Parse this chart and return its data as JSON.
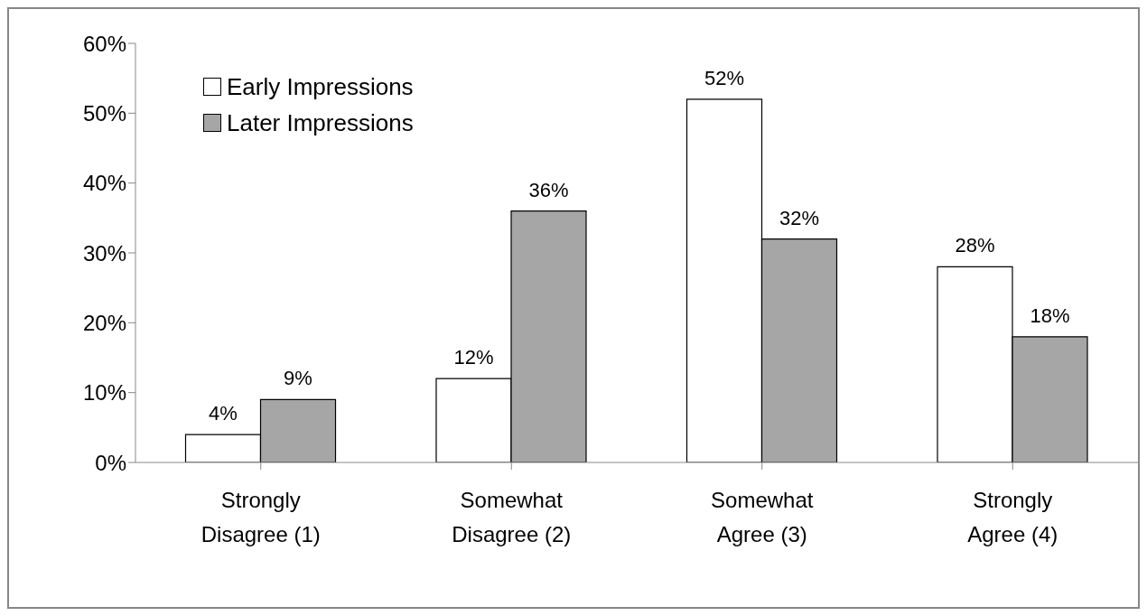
{
  "chart_data": {
    "type": "bar",
    "categories": [
      "Strongly Disagree (1)",
      "Somewhat Disagree (2)",
      "Somewhat Agree (3)",
      "Strongly Agree (4)"
    ],
    "series": [
      {
        "name": "Early Impressions",
        "color": "#ffffff",
        "values": [
          4,
          12,
          52,
          28
        ],
        "value_labels": [
          "4%",
          "12%",
          "52%",
          "28%"
        ]
      },
      {
        "name": "Later Impressions",
        "color": "#a6a6a6",
        "values": [
          9,
          36,
          32,
          18
        ],
        "value_labels": [
          "9%",
          "36%",
          "32%",
          "18%"
        ]
      }
    ],
    "ylim": [
      0,
      60
    ],
    "yticks": [
      {
        "value": 0,
        "label": "0%"
      },
      {
        "value": 10,
        "label": "10%"
      },
      {
        "value": 20,
        "label": "20%"
      },
      {
        "value": 30,
        "label": "30%"
      },
      {
        "value": 40,
        "label": "40%"
      },
      {
        "value": 50,
        "label": "50%"
      },
      {
        "value": 60,
        "label": "60%"
      }
    ],
    "grid": false,
    "legend": "top left"
  }
}
